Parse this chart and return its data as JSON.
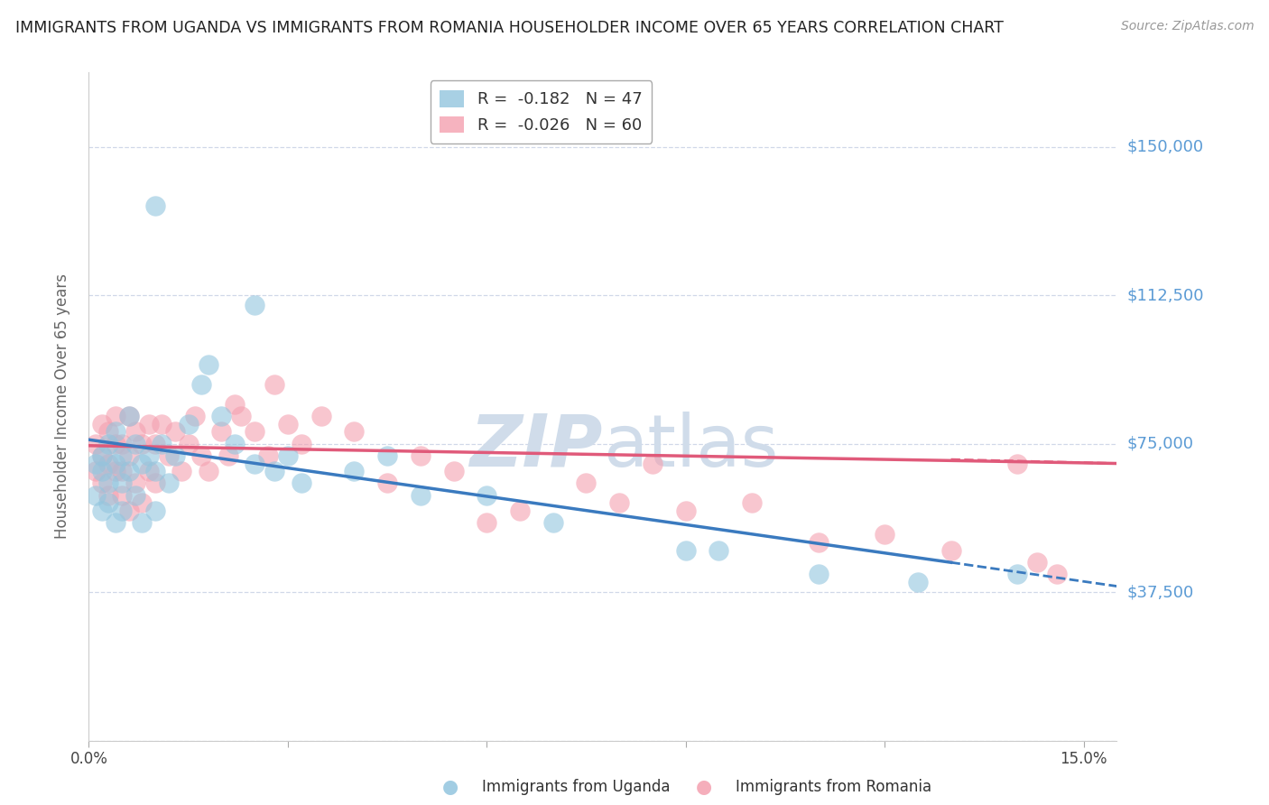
{
  "title": "IMMIGRANTS FROM UGANDA VS IMMIGRANTS FROM ROMANIA HOUSEHOLDER INCOME OVER 65 YEARS CORRELATION CHART",
  "source": "Source: ZipAtlas.com",
  "ylabel": "Householder Income Over 65 years",
  "xlim": [
    0,
    0.155
  ],
  "ylim": [
    0,
    168750
  ],
  "yticks": [
    0,
    37500,
    75000,
    112500,
    150000
  ],
  "ytick_labels": [
    "",
    "$37,500",
    "$75,000",
    "$112,500",
    "$150,000"
  ],
  "xticks": [
    0.0,
    0.03,
    0.06,
    0.09,
    0.12,
    0.15
  ],
  "xtick_labels": [
    "0.0%",
    "",
    "",
    "",
    "",
    "15.0%"
  ],
  "legend1_label": "R =  -0.182   N = 47",
  "legend2_label": "R =  -0.026   N = 60",
  "legend1_color": "#92c5de",
  "legend2_color": "#f4a0b0",
  "trend_color_uganda": "#3a7abf",
  "trend_color_romania": "#e05a7a",
  "background_color": "#ffffff",
  "grid_color": "#d0d8e8",
  "right_label_color": "#5b9bd5",
  "watermark_color": "#d0dcea",
  "uganda_x": [
    0.001,
    0.001,
    0.002,
    0.002,
    0.002,
    0.003,
    0.003,
    0.003,
    0.004,
    0.004,
    0.004,
    0.005,
    0.005,
    0.005,
    0.006,
    0.006,
    0.007,
    0.007,
    0.008,
    0.008,
    0.009,
    0.01,
    0.01,
    0.011,
    0.012,
    0.013,
    0.015,
    0.017,
    0.018,
    0.02,
    0.022,
    0.025,
    0.028,
    0.03,
    0.032,
    0.04,
    0.045,
    0.05,
    0.06,
    0.07,
    0.09,
    0.095,
    0.11,
    0.125,
    0.14,
    0.01,
    0.025
  ],
  "uganda_y": [
    70000,
    62000,
    68000,
    72000,
    58000,
    75000,
    65000,
    60000,
    78000,
    70000,
    55000,
    72000,
    65000,
    58000,
    82000,
    68000,
    75000,
    62000,
    70000,
    55000,
    72000,
    68000,
    58000,
    75000,
    65000,
    72000,
    80000,
    90000,
    95000,
    82000,
    75000,
    70000,
    68000,
    72000,
    65000,
    68000,
    72000,
    62000,
    62000,
    55000,
    48000,
    48000,
    42000,
    40000,
    42000,
    135000,
    110000
  ],
  "romania_x": [
    0.001,
    0.001,
    0.002,
    0.002,
    0.002,
    0.003,
    0.003,
    0.003,
    0.004,
    0.004,
    0.004,
    0.005,
    0.005,
    0.005,
    0.006,
    0.006,
    0.006,
    0.007,
    0.007,
    0.008,
    0.008,
    0.009,
    0.009,
    0.01,
    0.01,
    0.011,
    0.012,
    0.013,
    0.014,
    0.015,
    0.016,
    0.017,
    0.018,
    0.02,
    0.021,
    0.022,
    0.023,
    0.025,
    0.027,
    0.028,
    0.03,
    0.032,
    0.035,
    0.04,
    0.045,
    0.05,
    0.055,
    0.06,
    0.065,
    0.075,
    0.08,
    0.085,
    0.09,
    0.1,
    0.11,
    0.12,
    0.13,
    0.14,
    0.143,
    0.146
  ],
  "romania_y": [
    75000,
    68000,
    72000,
    80000,
    65000,
    78000,
    70000,
    62000,
    82000,
    75000,
    68000,
    75000,
    68000,
    62000,
    82000,
    72000,
    58000,
    78000,
    65000,
    75000,
    60000,
    80000,
    68000,
    75000,
    65000,
    80000,
    72000,
    78000,
    68000,
    75000,
    82000,
    72000,
    68000,
    78000,
    72000,
    85000,
    82000,
    78000,
    72000,
    90000,
    80000,
    75000,
    82000,
    78000,
    65000,
    72000,
    68000,
    55000,
    58000,
    65000,
    60000,
    70000,
    58000,
    60000,
    50000,
    52000,
    48000,
    70000,
    45000,
    42000
  ],
  "trend_ug_x0": 0.0,
  "trend_ug_y0": 76000,
  "trend_ug_x1": 0.13,
  "trend_ug_y1": 45000,
  "trend_ug_dash_x0": 0.13,
  "trend_ug_dash_y0": 45000,
  "trend_ug_dash_x1": 0.155,
  "trend_ug_dash_y1": 39000,
  "trend_ro_x0": 0.0,
  "trend_ro_y0": 74500,
  "trend_ro_x1": 0.155,
  "trend_ro_y1": 70000,
  "trend_ro_dash_x0": 0.13,
  "trend_ro_dash_y0": 71000,
  "trend_ro_dash_x1": 0.155,
  "trend_ro_dash_y1": 70000
}
